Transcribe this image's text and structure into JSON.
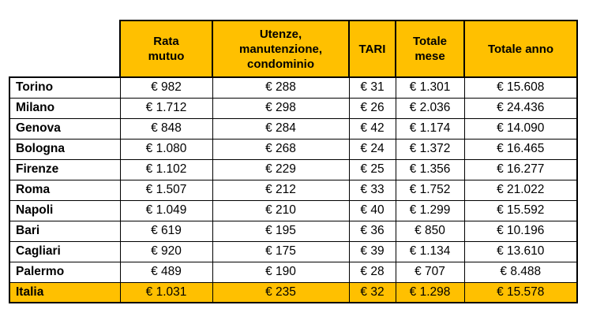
{
  "table": {
    "headers": [
      "",
      "Rata\nmutuo",
      "Utenze,\nmanutenzione,\ncondominio",
      "TARI",
      "Totale\nmese",
      "Totale anno"
    ],
    "rows": [
      {
        "label": "Torino",
        "values": [
          "€ 982",
          "€ 288",
          "€ 31",
          "€ 1.301",
          "€ 15.608"
        ],
        "highlight": false
      },
      {
        "label": "Milano",
        "values": [
          "€ 1.712",
          "€ 298",
          "€ 26",
          "€ 2.036",
          "€ 24.436"
        ],
        "highlight": false
      },
      {
        "label": "Genova",
        "values": [
          "€ 848",
          "€ 284",
          "€ 42",
          "€ 1.174",
          "€ 14.090"
        ],
        "highlight": false
      },
      {
        "label": "Bologna",
        "values": [
          "€ 1.080",
          "€ 268",
          "€ 24",
          "€ 1.372",
          "€ 16.465"
        ],
        "highlight": false
      },
      {
        "label": "Firenze",
        "values": [
          "€ 1.102",
          "€ 229",
          "€ 25",
          "€ 1.356",
          "€ 16.277"
        ],
        "highlight": false
      },
      {
        "label": "Roma",
        "values": [
          "€ 1.507",
          "€ 212",
          "€ 33",
          "€ 1.752",
          "€ 21.022"
        ],
        "highlight": false
      },
      {
        "label": "Napoli",
        "values": [
          "€ 1.049",
          "€ 210",
          "€ 40",
          "€ 1.299",
          "€ 15.592"
        ],
        "highlight": false
      },
      {
        "label": "Bari",
        "values": [
          "€ 619",
          "€ 195",
          "€ 36",
          "€ 850",
          "€ 10.196"
        ],
        "highlight": false
      },
      {
        "label": "Cagliari",
        "values": [
          "€ 920",
          "€ 175",
          "€ 39",
          "€ 1.134",
          "€ 13.610"
        ],
        "highlight": false
      },
      {
        "label": "Palermo",
        "values": [
          "€ 489",
          "€ 190",
          "€ 28",
          "€ 707",
          "€ 8.488"
        ],
        "highlight": false
      },
      {
        "label": "Italia",
        "values": [
          "€ 1.031",
          "€ 235",
          "€ 32",
          "€ 1.298",
          "€ 15.578"
        ],
        "highlight": true
      }
    ]
  },
  "colors": {
    "header_bg": "#FFC000",
    "highlight_row_bg": "#FFC000",
    "border": "#000000",
    "text": "#000000",
    "background": "#FFFFFF"
  },
  "chart_data": {
    "type": "table",
    "title": "",
    "categories": [
      "Torino",
      "Milano",
      "Genova",
      "Bologna",
      "Firenze",
      "Roma",
      "Napoli",
      "Bari",
      "Cagliari",
      "Palermo",
      "Italia"
    ],
    "series": [
      {
        "name": "Rata mutuo",
        "values": [
          982,
          1712,
          848,
          1080,
          1102,
          1507,
          1049,
          619,
          920,
          489,
          1031
        ]
      },
      {
        "name": "Utenze, manutenzione, condominio",
        "values": [
          288,
          298,
          284,
          268,
          229,
          212,
          210,
          195,
          175,
          190,
          235
        ]
      },
      {
        "name": "TARI",
        "values": [
          31,
          26,
          42,
          24,
          25,
          33,
          40,
          36,
          39,
          28,
          32
        ]
      },
      {
        "name": "Totale mese",
        "values": [
          1301,
          2036,
          1174,
          1372,
          1356,
          1752,
          1299,
          850,
          1134,
          707,
          1298
        ]
      },
      {
        "name": "Totale anno",
        "values": [
          15608,
          24436,
          14090,
          16465,
          16277,
          21022,
          15592,
          10196,
          13610,
          8488,
          15578
        ]
      }
    ],
    "currency": "EUR",
    "notes": "Values shown with euro sign and Italian thousands separator; Italia row is the national summary highlighted in gold"
  }
}
